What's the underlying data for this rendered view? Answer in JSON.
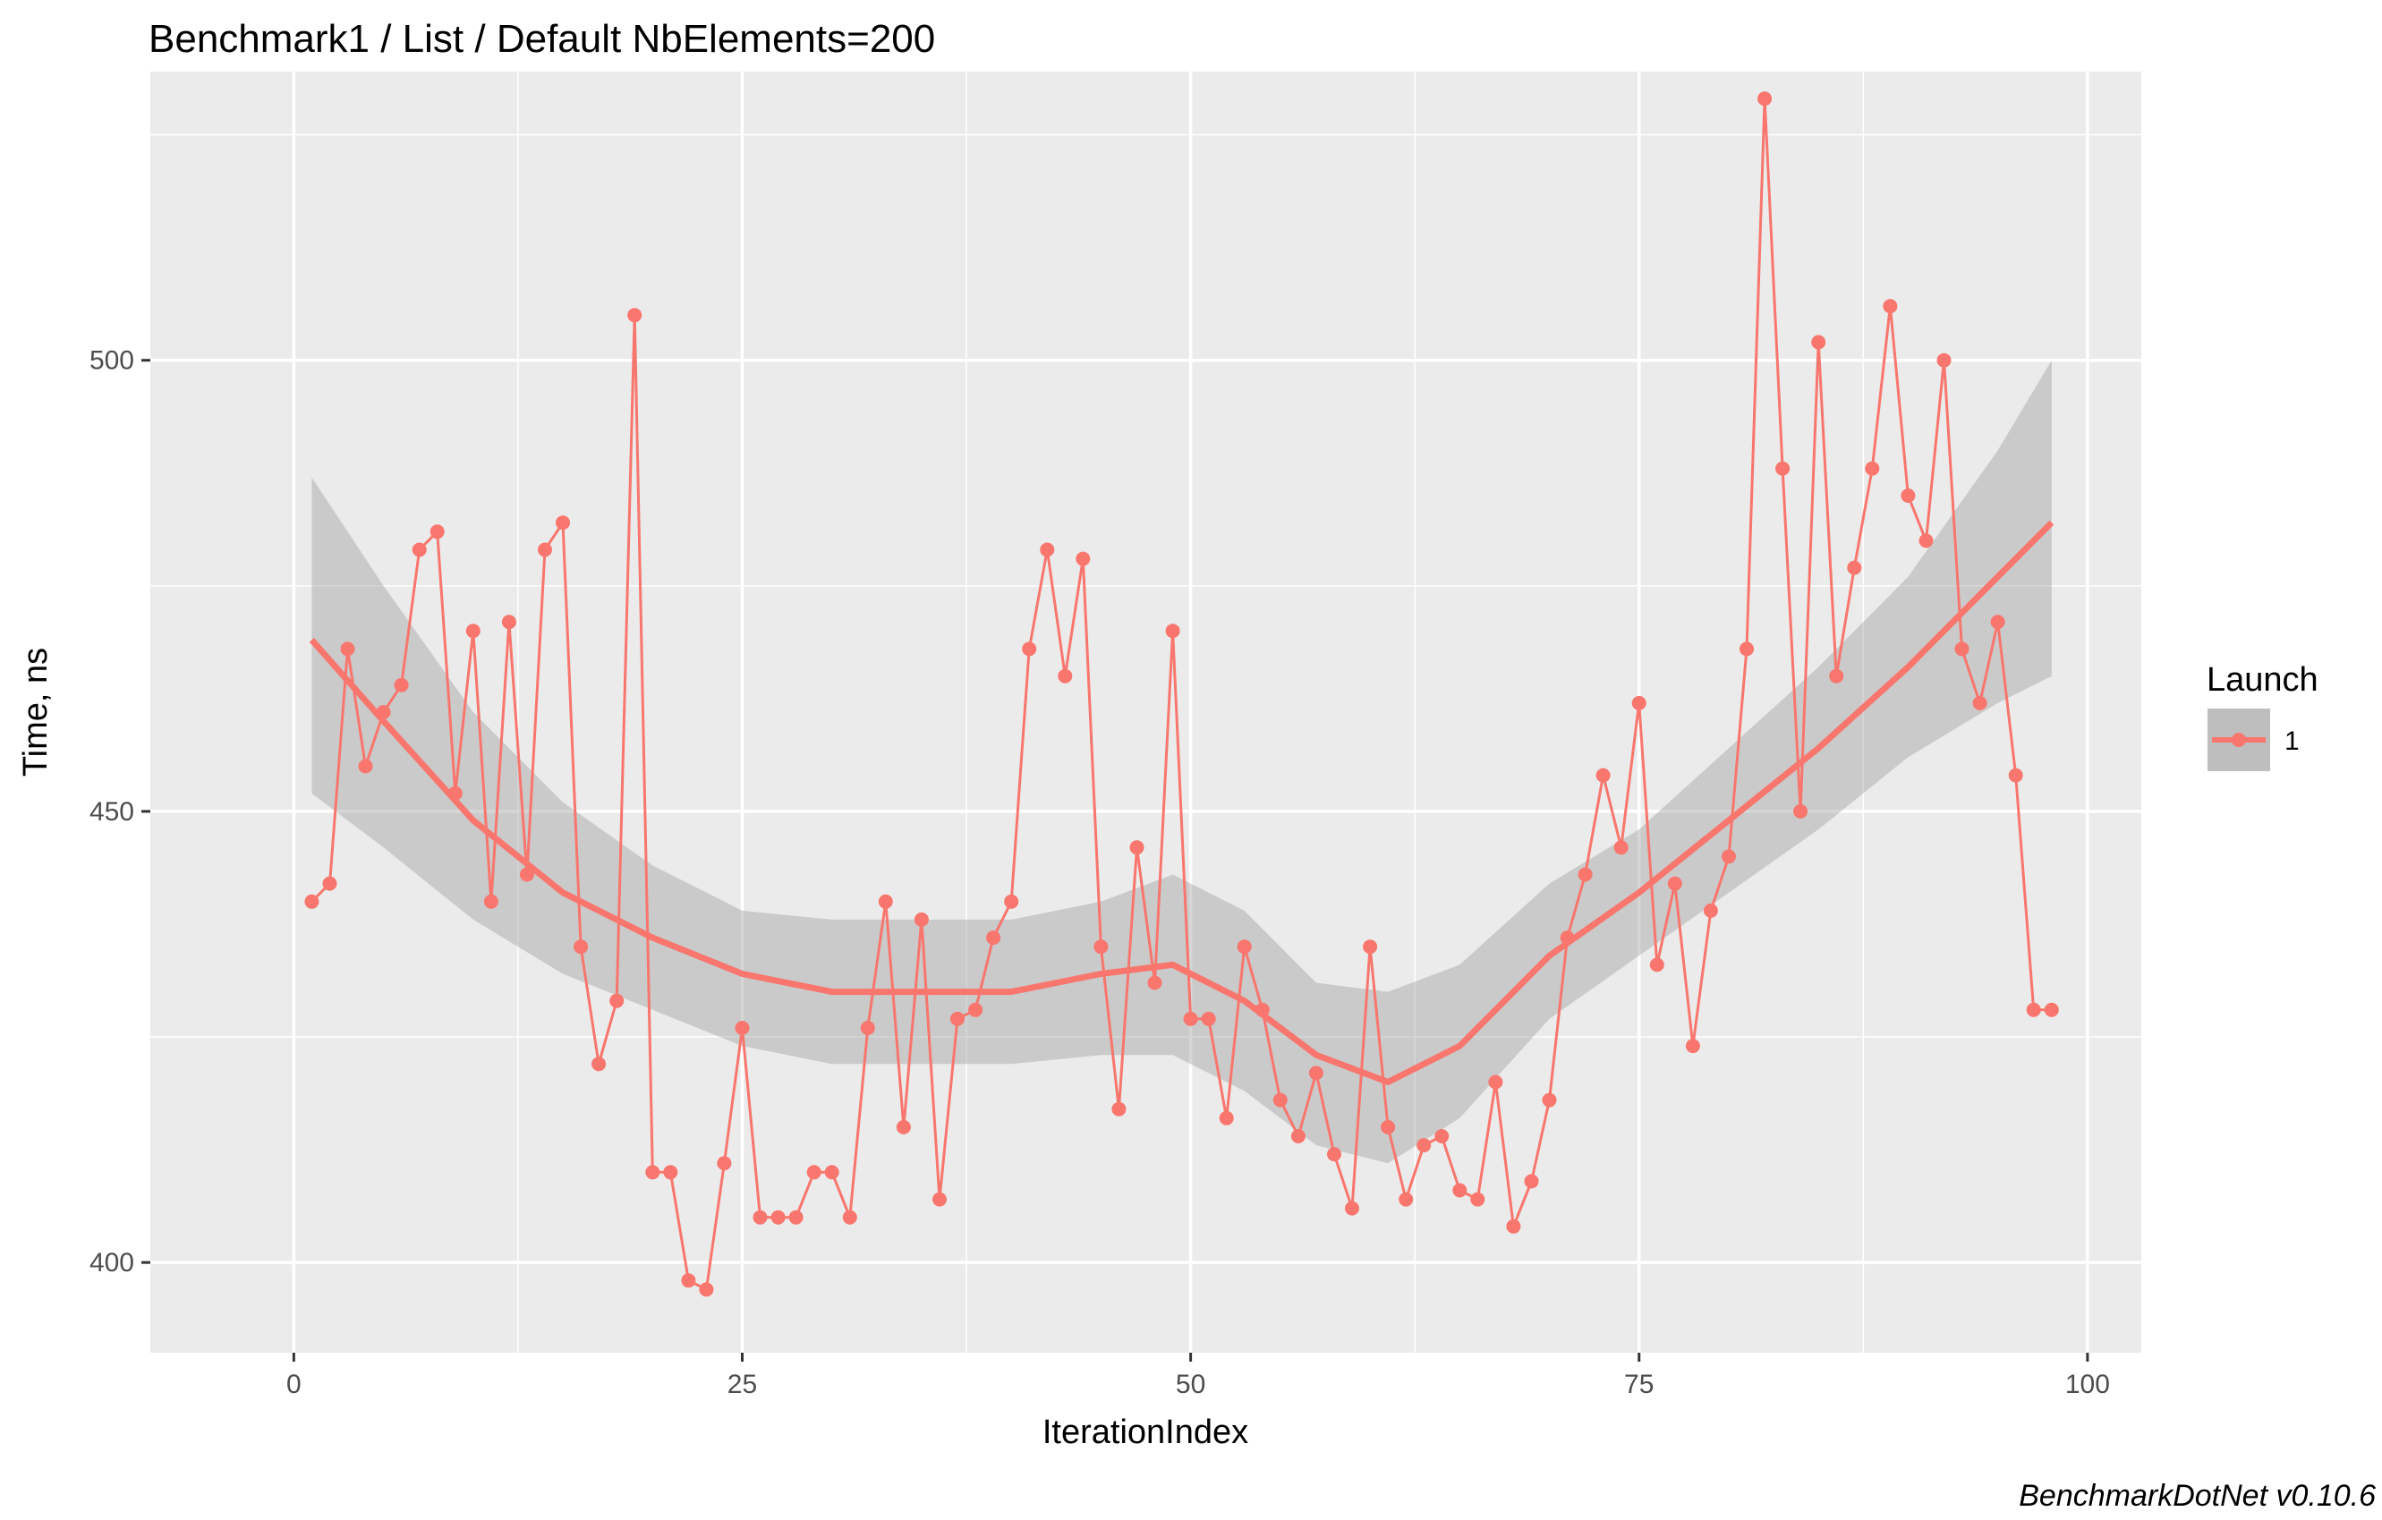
{
  "chart_data": {
    "type": "line",
    "title": "Benchmark1 / List / Default NbElements=200",
    "xlabel": "IterationIndex",
    "ylabel": "Time, ns",
    "caption": "BenchmarkDotNet v0.10.6",
    "xlim": [
      -8,
      103
    ],
    "ylim": [
      390,
      532
    ],
    "x_ticks": [
      0,
      25,
      50,
      75,
      100
    ],
    "x_tick_labels": [
      "0",
      "25",
      "50",
      "75",
      "100"
    ],
    "y_ticks": [
      400,
      450,
      500
    ],
    "y_tick_labels": [
      "400",
      "450",
      "500"
    ],
    "grid": true,
    "legend": {
      "title": "Launch",
      "position": "right",
      "entries": [
        "1"
      ]
    },
    "colors": {
      "series": "#f8766d",
      "band": "#999999",
      "panel": "#ebebeb",
      "grid": "#ffffff"
    },
    "series": [
      {
        "name": "1",
        "x": [
          1,
          2,
          3,
          4,
          5,
          6,
          7,
          8,
          9,
          10,
          11,
          12,
          13,
          14,
          15,
          16,
          17,
          18,
          19,
          20,
          21,
          22,
          23,
          24,
          25,
          26,
          27,
          28,
          29,
          30,
          31,
          32,
          33,
          34,
          35,
          36,
          37,
          38,
          39,
          40,
          41,
          42,
          43,
          44,
          45,
          46,
          47,
          48,
          49,
          50,
          51,
          52,
          53,
          54,
          55,
          56,
          57,
          58,
          59,
          60,
          61,
          62,
          63,
          64,
          65,
          66,
          67,
          68,
          69,
          70,
          71,
          72,
          73,
          74,
          75,
          76,
          77,
          78,
          79,
          80,
          81,
          82,
          83,
          84,
          85,
          86,
          87,
          88,
          89,
          90,
          91,
          92,
          93,
          94,
          95,
          96,
          97,
          98
        ],
        "values": [
          440,
          442,
          468,
          455,
          461,
          464,
          479,
          481,
          452,
          470,
          440,
          471,
          443,
          479,
          482,
          435,
          422,
          429,
          505,
          410,
          410,
          398,
          397,
          411,
          426,
          405,
          405,
          405,
          410,
          410,
          405,
          426,
          440,
          415,
          438,
          407,
          427,
          428,
          436,
          440,
          468,
          479,
          465,
          478,
          435,
          417,
          446,
          431,
          470,
          427,
          427,
          416,
          435,
          428,
          418,
          414,
          421,
          412,
          406,
          435,
          415,
          407,
          413,
          414,
          408,
          407,
          420,
          404,
          409,
          418,
          436,
          443,
          454,
          446,
          462,
          433,
          442,
          424,
          439,
          445,
          468,
          529,
          488,
          450,
          502,
          465,
          477,
          488,
          506,
          485,
          480,
          500,
          468,
          462,
          471,
          454,
          428,
          428
        ]
      }
    ],
    "smooth": {
      "x": [
        1,
        5,
        10,
        15,
        20,
        25,
        30,
        35,
        40,
        45,
        49,
        53,
        57,
        61,
        65,
        70,
        75,
        80,
        85,
        90,
        95,
        98
      ],
      "fit": [
        469,
        460,
        449,
        441,
        436,
        432,
        430,
        430,
        430,
        432,
        433,
        429,
        423,
        420,
        424,
        434,
        441,
        449,
        457,
        466,
        476,
        482
      ],
      "lower": [
        452,
        446,
        438,
        432,
        428,
        424,
        422,
        422,
        422,
        423,
        423,
        419,
        413,
        411,
        416,
        427,
        434,
        441,
        448,
        456,
        462,
        465
      ],
      "upper": [
        487,
        475,
        461,
        451,
        444,
        439,
        438,
        438,
        438,
        440,
        443,
        439,
        431,
        430,
        433,
        442,
        448,
        457,
        466,
        476,
        490,
        500
      ]
    }
  }
}
